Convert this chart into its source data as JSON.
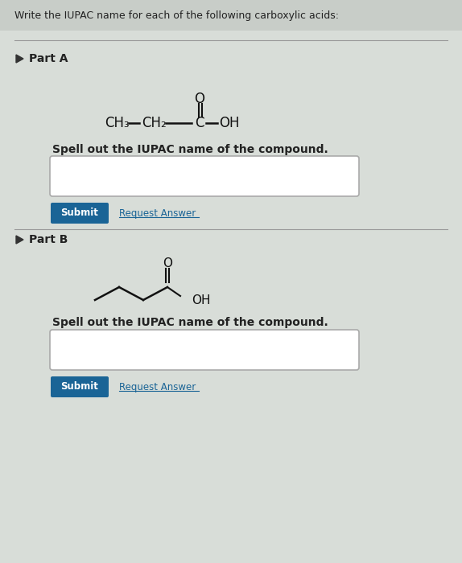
{
  "bg_color": "#d8ddd8",
  "header_text": "Write the IUPAC name for each of the following carboxylic acids:",
  "header_bg": "#c8cdc8",
  "part_a_label": "Part A",
  "part_b_label": "Part B",
  "spell_out_text": "Spell out the IUPAC name of the compound.",
  "submit_text": "Submit",
  "request_answer_text": "Request Answer",
  "submit_bg": "#1a6496",
  "submit_text_color": "#ffffff",
  "request_answer_color": "#1a6496",
  "input_box_color": "#ffffff",
  "input_box_border": "#aaaaaa",
  "font_color": "#222222",
  "title_font_size": 9,
  "label_font_size": 10,
  "body_font_size": 9
}
